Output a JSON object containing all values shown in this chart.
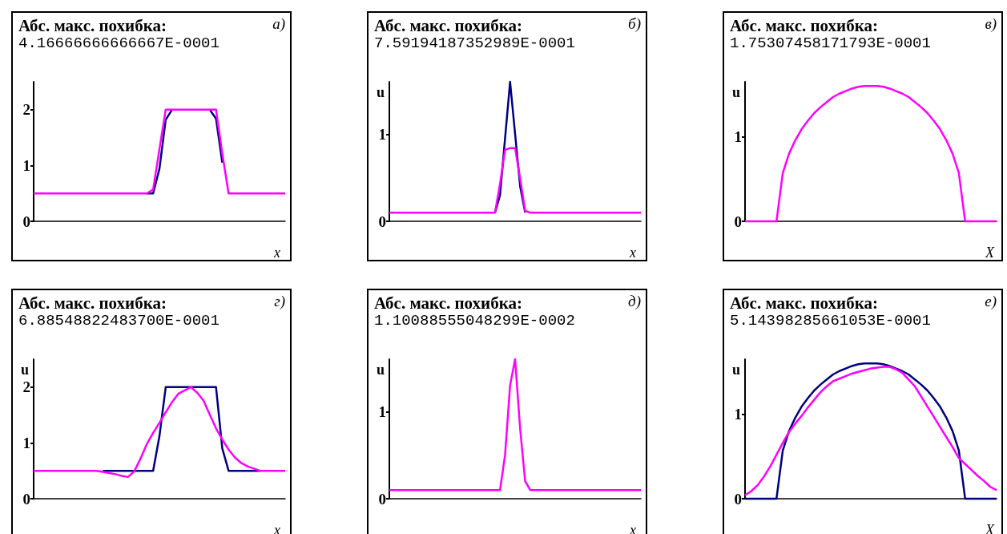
{
  "chart_data": [
    {
      "type": "line",
      "title": "Абс. макс. похибка:",
      "subtitle": "4.16666666666667E-0001",
      "annotations": [
        "а)"
      ],
      "xlabel": "x",
      "categories": [
        null,
        null,
        null,
        null,
        null,
        null,
        null,
        null,
        null,
        null,
        null,
        null,
        null,
        null,
        null,
        null,
        null,
        null,
        null,
        null,
        null,
        null,
        null,
        null,
        null,
        null,
        null,
        null,
        null,
        null,
        null,
        null,
        null,
        null,
        null,
        null,
        null,
        null,
        null,
        null,
        null
      ],
      "ylim": [
        0,
        2.5
      ],
      "yticks": [
        0,
        1,
        2
      ],
      "tick_labels": "y",
      "marker": "none",
      "series": [
        {
          "color": "#000080",
          "values": [
            null,
            null,
            null,
            null,
            null,
            null,
            null,
            null,
            null,
            null,
            null,
            null,
            null,
            null,
            null,
            null,
            null,
            null,
            0.5,
            0.5,
            0.94,
            1.82,
            2,
            null,
            null,
            null,
            null,
            null,
            2,
            1.84,
            1.05,
            null,
            null,
            null,
            null,
            null,
            null,
            null,
            null,
            null,
            null
          ]
        },
        {
          "color": "#ff00ff",
          "values": [
            0.5,
            0.5,
            0.5,
            0.5,
            0.5,
            0.5,
            0.5,
            0.5,
            0.5,
            0.5,
            0.5,
            0.5,
            0.5,
            0.5,
            0.5,
            0.5,
            0.5,
            0.5,
            0.5,
            0.57,
            1.29,
            2,
            2,
            2,
            2,
            2,
            2,
            2,
            2,
            2,
            1.21,
            0.5,
            0.5,
            0.5,
            0.5,
            0.5,
            0.5,
            0.5,
            0.5,
            0.5,
            0.5
          ]
        }
      ]
    },
    {
      "type": "line",
      "title": "Абс. макс. похибка:",
      "subtitle": "7.59194187352989E-0001",
      "annotations": [
        "б)"
      ],
      "xlabel": "x",
      "ylabel": "u",
      "categories": [
        null,
        null,
        null,
        null,
        null,
        null,
        null,
        null,
        null,
        null,
        null,
        null,
        null,
        null,
        null,
        null,
        null,
        null,
        null,
        null,
        null,
        null,
        null,
        null,
        null,
        null,
        null,
        null,
        null,
        null,
        null,
        null,
        null,
        null,
        null,
        null,
        null,
        null,
        null,
        null,
        null,
        null,
        null,
        null,
        null,
        null,
        null,
        null,
        null,
        null,
        null
      ],
      "ylim": [
        0,
        1.6
      ],
      "yticks": [
        0,
        1
      ],
      "tick_labels": "y",
      "marker": "none",
      "series": [
        {
          "color": "#000080",
          "values": [
            null,
            null,
            null,
            null,
            null,
            null,
            null,
            null,
            null,
            null,
            null,
            null,
            null,
            null,
            null,
            null,
            null,
            null,
            null,
            null,
            null,
            0.1,
            0.3,
            0.95,
            1.6,
            1,
            0.4,
            0.1,
            null,
            null,
            null,
            null,
            null,
            null,
            null,
            null,
            null,
            null,
            null,
            null,
            null,
            null,
            null,
            null,
            null,
            null,
            null,
            null,
            null,
            null,
            null
          ]
        },
        {
          "color": "#ff00ff",
          "values": [
            0.1,
            0.1,
            0.1,
            0.1,
            0.1,
            0.1,
            0.1,
            0.1,
            0.1,
            0.1,
            0.1,
            0.1,
            0.1,
            0.1,
            0.1,
            0.1,
            0.1,
            0.1,
            0.1,
            0.1,
            0.1,
            0.1,
            0.43,
            0.82,
            0.84,
            0.84,
            0.49,
            0.12,
            0.1,
            0.1,
            0.1,
            0.1,
            0.1,
            0.1,
            0.1,
            0.1,
            0.1,
            0.1,
            0.1,
            0.1,
            0.1,
            0.1,
            0.1,
            0.1,
            0.1,
            0.1,
            0.1,
            0.1,
            0.1,
            0.1,
            0.1
          ]
        }
      ]
    },
    {
      "type": "line",
      "title": "Абс. макс. похибка:",
      "subtitle": "1.75307458171793E-0001",
      "annotations": [
        "в)"
      ],
      "xlabel": "X",
      "ylabel": "u",
      "categories": [
        null,
        null,
        null,
        null,
        null,
        null,
        null,
        null,
        null,
        null,
        null,
        null,
        null,
        null,
        null,
        null,
        null,
        null,
        null,
        null,
        null,
        null,
        null,
        null,
        null,
        null,
        null,
        null,
        null,
        null,
        null,
        null,
        null,
        null,
        null,
        null,
        null,
        null,
        null,
        null,
        null
      ],
      "ylim": [
        0,
        1.65
      ],
      "yticks": [
        0,
        1
      ],
      "tick_labels": "y",
      "marker": "none",
      "series": [
        {
          "color": "#ff00ff",
          "values": [
            0,
            0,
            0,
            0,
            0,
            0,
            0.57,
            0.8,
            0.96,
            1.09,
            1.19,
            1.28,
            1.35,
            1.41,
            1.47,
            1.51,
            1.54,
            1.57,
            1.59,
            1.6,
            1.6,
            1.6,
            1.59,
            1.57,
            1.54,
            1.51,
            1.47,
            1.41,
            1.35,
            1.28,
            1.19,
            1.09,
            0.96,
            0.8,
            0.57,
            0,
            0,
            0,
            0,
            0,
            0
          ]
        }
      ]
    },
    {
      "type": "line",
      "title": "Абс. макс. похибка:",
      "subtitle": "6.88548822483700E-0001",
      "annotations": [
        "г)"
      ],
      "xlabel": "x",
      "ylabel": "u",
      "categories": [
        null,
        null,
        null,
        null,
        null,
        null,
        null,
        null,
        null,
        null,
        null,
        null,
        null,
        null,
        null,
        null,
        null,
        null,
        null,
        null,
        null,
        null,
        null,
        null,
        null,
        null,
        null,
        null,
        null,
        null,
        null,
        null,
        null,
        null,
        null,
        null,
        null,
        null,
        null,
        null,
        null
      ],
      "ylim": [
        0,
        2.5
      ],
      "yticks": [
        0,
        1,
        2
      ],
      "tick_labels": "y",
      "marker": "none",
      "series": [
        {
          "color": "#000080",
          "values": [
            null,
            null,
            null,
            null,
            null,
            null,
            null,
            null,
            null,
            null,
            null,
            0.5,
            0.5,
            0.5,
            0.5,
            0.5,
            0.5,
            0.5,
            0.5,
            0.5,
            1.12,
            2,
            2,
            2,
            2,
            2,
            2,
            2,
            2,
            2,
            0.9,
            0.5,
            0.5,
            0.5,
            0.5,
            0.5,
            0.5,
            null,
            null,
            null,
            null
          ]
        },
        {
          "color": "#ff00ff",
          "values": [
            0.5,
            0.5,
            0.5,
            0.5,
            0.5,
            0.5,
            0.5,
            0.5,
            0.5,
            0.5,
            0.5,
            0.48,
            0.46,
            0.44,
            0.41,
            0.39,
            0.49,
            0.72,
            0.98,
            1.18,
            1.36,
            1.55,
            1.73,
            1.88,
            1.94,
            2,
            1.9,
            1.76,
            1.51,
            1.26,
            1.06,
            0.88,
            0.74,
            0.64,
            0.58,
            0.54,
            0.5,
            0.5,
            0.5,
            0.5,
            0.5
          ]
        }
      ]
    },
    {
      "type": "line",
      "title": "Абс. макс. похибка:",
      "subtitle": "1.10088555048299E-0002",
      "annotations": [
        "д)"
      ],
      "xlabel": "x",
      "ylabel": "u",
      "categories": [
        null,
        null,
        null,
        null,
        null,
        null,
        null,
        null,
        null,
        null,
        null,
        null,
        null,
        null,
        null,
        null,
        null,
        null,
        null,
        null,
        null,
        null,
        null,
        null,
        null,
        null,
        null,
        null,
        null,
        null,
        null,
        null,
        null,
        null,
        null,
        null,
        null,
        null,
        null,
        null,
        null,
        null,
        null,
        null,
        null,
        null,
        null,
        null,
        null,
        null,
        null
      ],
      "ylim": [
        0,
        1.6
      ],
      "yticks": [
        0,
        1
      ],
      "tick_labels": "y",
      "marker": "none",
      "series": [
        {
          "color": "#ff00ff",
          "values": [
            0.1,
            0.1,
            0.1,
            0.1,
            0.1,
            0.1,
            0.1,
            0.1,
            0.1,
            0.1,
            0.1,
            0.1,
            0.1,
            0.1,
            0.1,
            0.1,
            0.1,
            0.1,
            0.1,
            0.1,
            0.1,
            0.1,
            0.1,
            0.5,
            1.3,
            1.6,
            0.8,
            0.2,
            0.1,
            0.1,
            0.1,
            0.1,
            0.1,
            0.1,
            0.1,
            0.1,
            0.1,
            0.1,
            0.1,
            0.1,
            0.1,
            0.1,
            0.1,
            0.1,
            0.1,
            0.1,
            0.1,
            0.1,
            0.1,
            0.1,
            0.1
          ]
        }
      ]
    },
    {
      "type": "line",
      "title": "Абс. макс. похибка:",
      "subtitle": "5.14398285661053E-0001",
      "annotations": [
        "е)"
      ],
      "xlabel": "X",
      "ylabel": "u",
      "categories": [
        null,
        null,
        null,
        null,
        null,
        null,
        null,
        null,
        null,
        null,
        null,
        null,
        null,
        null,
        null,
        null,
        null,
        null,
        null,
        null,
        null,
        null,
        null,
        null,
        null,
        null,
        null,
        null,
        null,
        null,
        null,
        null,
        null,
        null,
        null,
        null,
        null,
        null,
        null,
        null,
        null
      ],
      "ylim": [
        0,
        1.65
      ],
      "yticks": [
        0,
        1
      ],
      "tick_labels": "y",
      "marker": "none",
      "series": [
        {
          "color": "#000080",
          "values": [
            0,
            0,
            0,
            0,
            0,
            0,
            0.57,
            0.8,
            0.96,
            1.09,
            1.19,
            1.28,
            1.35,
            1.41,
            1.47,
            1.51,
            1.54,
            1.57,
            1.59,
            1.6,
            1.6,
            1.6,
            1.59,
            1.57,
            1.54,
            1.51,
            1.47,
            1.41,
            1.35,
            1.28,
            1.19,
            1.09,
            0.96,
            0.8,
            0.57,
            0,
            0,
            0,
            0,
            0,
            0
          ]
        },
        {
          "color": "#ff00ff",
          "values": [
            0.04,
            0.09,
            0.16,
            0.26,
            0.38,
            0.52,
            0.66,
            0.79,
            0.89,
            0.98,
            1.08,
            1.17,
            1.26,
            1.33,
            1.39,
            1.42,
            1.45,
            1.48,
            1.5,
            1.52,
            1.54,
            1.55,
            1.56,
            1.56,
            1.53,
            1.49,
            1.41,
            1.33,
            1.21,
            1.09,
            0.97,
            0.85,
            0.73,
            0.61,
            0.48,
            0.41,
            0.34,
            0.27,
            0.21,
            0.14,
            0.1
          ]
        }
      ]
    }
  ]
}
